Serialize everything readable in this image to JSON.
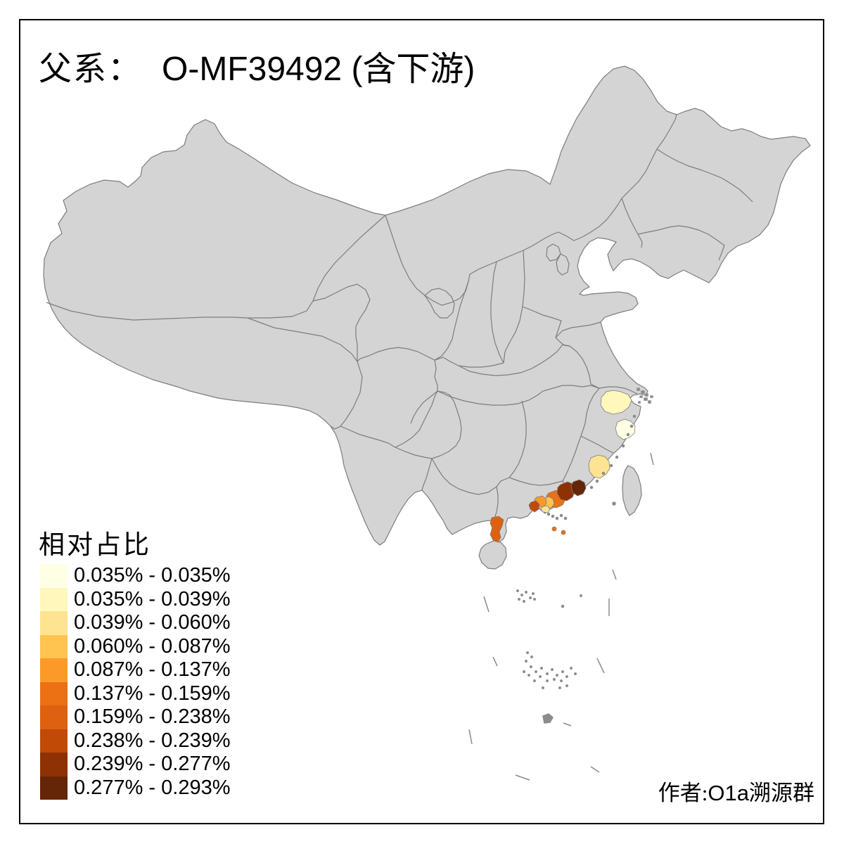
{
  "title": {
    "prefix": "父系：",
    "main": "O-MF39492 (含下游)"
  },
  "legend": {
    "title": "相对占比",
    "classes": [
      {
        "range": "0.035% - 0.035%",
        "color": "#FFFFE5"
      },
      {
        "range": "0.035% - 0.039%",
        "color": "#FFF7BC"
      },
      {
        "range": "0.039% - 0.060%",
        "color": "#FEE391"
      },
      {
        "range": "0.060% - 0.087%",
        "color": "#FEC44F"
      },
      {
        "range": "0.087% - 0.137%",
        "color": "#FB9A29"
      },
      {
        "range": "0.137% - 0.159%",
        "color": "#EC7014"
      },
      {
        "range": "0.159% - 0.238%",
        "color": "#DD6110"
      },
      {
        "range": "0.238% - 0.239%",
        "color": "#C14A07"
      },
      {
        "range": "0.239% - 0.277%",
        "color": "#8E3104"
      },
      {
        "range": "0.277% - 0.293%",
        "color": "#652507"
      }
    ]
  },
  "attribution": {
    "prefix_zh": "作者:",
    "latin": "O1a",
    "suffix_zh": "溯源群"
  },
  "map": {
    "land_color": "#D4D4D4",
    "border_color": "#7d7d7d",
    "islet_color": "#8c8c8c",
    "frame_color": "#000000",
    "sea_color": "#ffffff",
    "regions": [
      {
        "id": "zhejiang-coastal",
        "class": 1
      },
      {
        "id": "zhejiang-inland",
        "class": 2
      },
      {
        "id": "fujian-coastal",
        "class": 3
      },
      {
        "id": "prd-pale",
        "class": 3
      },
      {
        "id": "prd-gold",
        "class": 4
      },
      {
        "id": "prd-orange",
        "class": 5
      },
      {
        "id": "guangdong-east-orange",
        "class": 6
      },
      {
        "id": "island-dot-1",
        "class": 6
      },
      {
        "id": "island-dot-2",
        "class": 6
      },
      {
        "id": "leizhou-peninsula",
        "class": 7
      },
      {
        "id": "guangdong-southwest-dark",
        "class": 8
      },
      {
        "id": "jieyang-dark",
        "class": 9
      },
      {
        "id": "chaoshan-darkest",
        "class": 10
      }
    ]
  },
  "chart_data": {
    "type": "choropleth",
    "title": "父系： O-MF39492 (含下游)",
    "legend_title": "相对占比",
    "bins": [
      {
        "range": "0.035% - 0.035%",
        "color": "#FFFFE5"
      },
      {
        "range": "0.035% - 0.039%",
        "color": "#FFF7BC"
      },
      {
        "range": "0.039% - 0.060%",
        "color": "#FEE391"
      },
      {
        "range": "0.060% - 0.087%",
        "color": "#FEC44F"
      },
      {
        "range": "0.087% - 0.137%",
        "color": "#FB9A29"
      },
      {
        "range": "0.137% - 0.159%",
        "color": "#EC7014"
      },
      {
        "range": "0.159% - 0.238%",
        "color": "#DD6110"
      },
      {
        "range": "0.238% - 0.239%",
        "color": "#C14A07"
      },
      {
        "range": "0.239% - 0.277%",
        "color": "#8E3104"
      },
      {
        "range": "0.277% - 0.293%",
        "color": "#652507"
      }
    ],
    "legend_position": "bottom-left",
    "note": "Colored prefectures cluster on the southeast coast of China (Zhejiang, Fujian, Guangdong); darkest values in the Chaoshan area."
  }
}
